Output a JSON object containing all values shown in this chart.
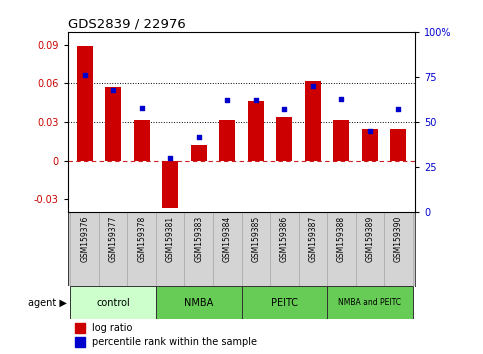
{
  "title": "GDS2839 / 22976",
  "samples": [
    "GSM159376",
    "GSM159377",
    "GSM159378",
    "GSM159381",
    "GSM159383",
    "GSM159384",
    "GSM159385",
    "GSM159386",
    "GSM159387",
    "GSM159388",
    "GSM159389",
    "GSM159390"
  ],
  "log_ratio": [
    0.089,
    0.057,
    0.032,
    -0.037,
    0.012,
    0.032,
    0.046,
    0.034,
    0.062,
    0.032,
    0.025,
    0.025
  ],
  "percentile": [
    76,
    68,
    58,
    30,
    42,
    62,
    62,
    57,
    70,
    63,
    45,
    57
  ],
  "groups": [
    {
      "label": "control",
      "start": 0,
      "end": 3,
      "color": "#ccffcc"
    },
    {
      "label": "NMBA",
      "start": 3,
      "end": 6,
      "color": "#66dd66"
    },
    {
      "label": "PEITC",
      "start": 6,
      "end": 9,
      "color": "#66dd66"
    },
    {
      "label": "NMBA and PEITC",
      "start": 9,
      "end": 12,
      "color": "#66dd66"
    }
  ],
  "bar_color": "#cc0000",
  "dot_color": "#0000cc",
  "ylim_left": [
    -0.04,
    0.1
  ],
  "ylim_right": [
    0,
    100
  ],
  "yticks_left": [
    -0.03,
    0.0,
    0.03,
    0.06,
    0.09
  ],
  "yticks_right": [
    0,
    25,
    50,
    75,
    100
  ],
  "ytick_labels_left": [
    "-0.03",
    "0",
    "0.03",
    "0.06",
    "0.09"
  ],
  "ytick_labels_right": [
    "0",
    "25",
    "50",
    "75",
    "100%"
  ],
  "dotted_lines": [
    0.03,
    0.06
  ],
  "zero_line": 0.0,
  "background_color": "#ffffff",
  "cell_bg": "#d4d4d4",
  "cell_border": "#aaaaaa",
  "legend_items": [
    "log ratio",
    "percentile rank within the sample"
  ]
}
